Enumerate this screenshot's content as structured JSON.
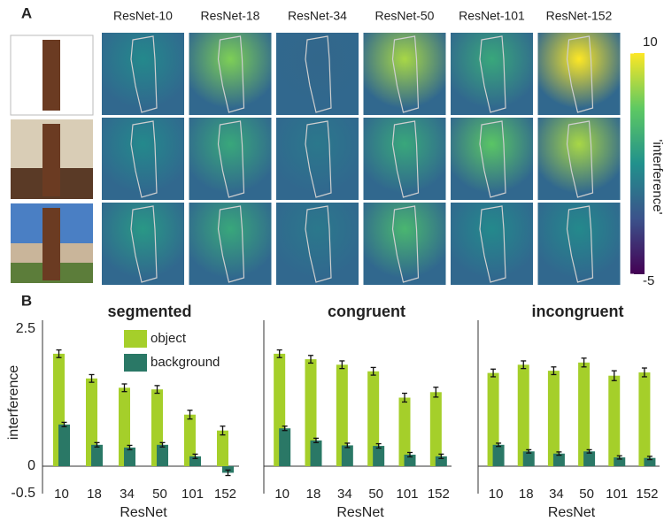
{
  "chart_data": [
    {
      "type": "heatmap",
      "panel": "A",
      "columns": [
        "ResNet-10",
        "ResNet-18",
        "ResNet-34",
        "ResNet-50",
        "ResNet-101",
        "ResNet-152"
      ],
      "values": [
        [
          2,
          7,
          0,
          8,
          4,
          10
        ],
        [
          2,
          4,
          1,
          4,
          6,
          8
        ],
        [
          3,
          4,
          1,
          5,
          2,
          2
        ]
      ],
      "clim": [
        -5,
        10
      ],
      "cticks": [
        -5,
        10
      ],
      "colorbar_label": "'interference'",
      "colormap": "viridis"
    },
    {
      "type": "bar",
      "panel": "B",
      "title": "segmented",
      "xlabel": "ResNet",
      "ylabel": "interference",
      "categories": [
        "10",
        "18",
        "34",
        "50",
        "101",
        "152"
      ],
      "ylim": [
        -0.5,
        2.5
      ],
      "yticks": [
        -0.5,
        0,
        2.5
      ],
      "series": [
        {
          "name": "object",
          "color": "#a5cf2a",
          "values": [
            2.05,
            1.6,
            1.43,
            1.4,
            0.94,
            0.65
          ],
          "errors": [
            0.07,
            0.07,
            0.07,
            0.07,
            0.08,
            0.08
          ]
        },
        {
          "name": "background",
          "color": "#2a7866",
          "values": [
            0.76,
            0.39,
            0.34,
            0.39,
            0.18,
            -0.12
          ],
          "errors": [
            0.04,
            0.04,
            0.04,
            0.04,
            0.04,
            0.05
          ]
        }
      ]
    },
    {
      "type": "bar",
      "title": "congruent",
      "xlabel": "ResNet",
      "categories": [
        "10",
        "18",
        "34",
        "50",
        "101",
        "152"
      ],
      "ylim": [
        -0.5,
        2.5
      ],
      "series": [
        {
          "color": "#a5cf2a",
          "values": [
            2.05,
            1.95,
            1.85,
            1.73,
            1.25,
            1.35
          ],
          "errors": [
            0.07,
            0.07,
            0.07,
            0.07,
            0.08,
            0.09
          ]
        },
        {
          "color": "#2a7866",
          "values": [
            0.69,
            0.47,
            0.38,
            0.37,
            0.21,
            0.18
          ],
          "errors": [
            0.04,
            0.04,
            0.04,
            0.04,
            0.04,
            0.04
          ]
        }
      ]
    },
    {
      "type": "bar",
      "title": "incongruent",
      "xlabel": "ResNet",
      "categories": [
        "10",
        "18",
        "34",
        "50",
        "101",
        "152"
      ],
      "ylim": [
        -0.5,
        2.5
      ],
      "series": [
        {
          "color": "#a5cf2a",
          "values": [
            1.7,
            1.85,
            1.74,
            1.89,
            1.65,
            1.71
          ],
          "errors": [
            0.07,
            0.07,
            0.07,
            0.08,
            0.09,
            0.08
          ]
        },
        {
          "color": "#2a7866",
          "values": [
            0.39,
            0.27,
            0.23,
            0.27,
            0.16,
            0.15
          ],
          "errors": [
            0.03,
            0.03,
            0.03,
            0.03,
            0.03,
            0.03
          ]
        }
      ]
    }
  ]
}
